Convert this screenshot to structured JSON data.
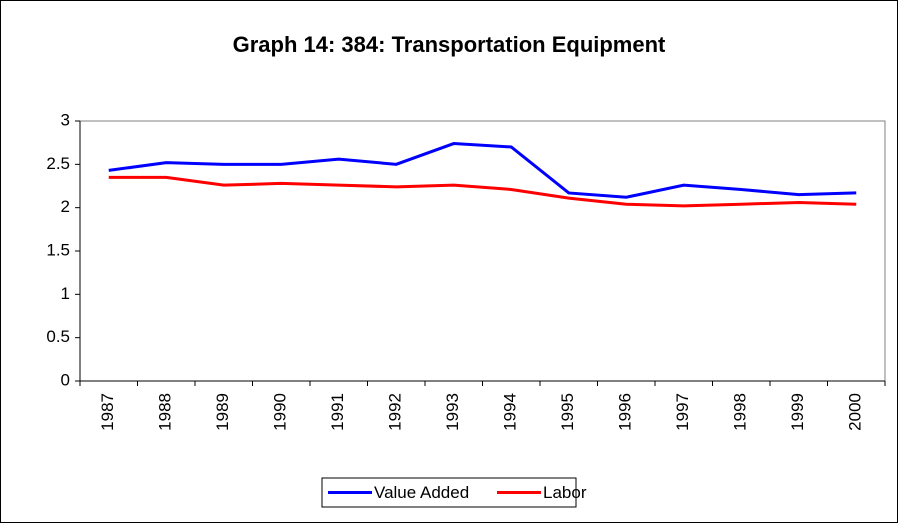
{
  "chart_data": {
    "type": "line",
    "title": "Graph 14: 384: Transportation Equipment",
    "categories": [
      "1987",
      "1988",
      "1989",
      "1990",
      "1991",
      "1992",
      "1993",
      "1994",
      "1995",
      "1996",
      "1997",
      "1998",
      "1999",
      "2000"
    ],
    "series": [
      {
        "name": "Value Added",
        "color": "#0000ff",
        "values": [
          2.43,
          2.52,
          2.5,
          2.5,
          2.56,
          2.5,
          2.74,
          2.7,
          2.17,
          2.12,
          2.26,
          2.21,
          2.15,
          2.17
        ]
      },
      {
        "name": "Labor",
        "color": "#ff0000",
        "values": [
          2.35,
          2.35,
          2.26,
          2.28,
          2.26,
          2.24,
          2.26,
          2.21,
          2.11,
          2.04,
          2.02,
          2.04,
          2.06,
          2.04
        ]
      }
    ],
    "ylim": [
      0,
      3
    ],
    "yticks": [
      0,
      0.5,
      1,
      1.5,
      2,
      2.5,
      3
    ],
    "grid": false,
    "legend": "bottom"
  }
}
